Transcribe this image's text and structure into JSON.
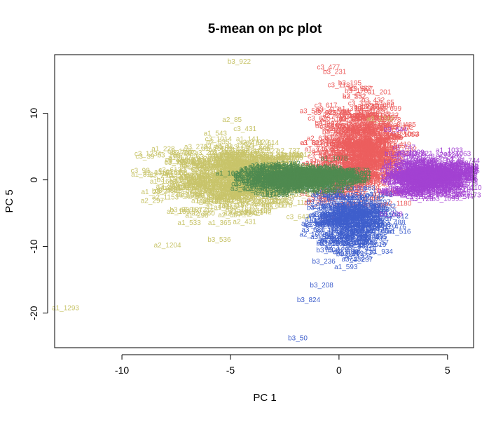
{
  "chart_data": {
    "type": "scatter",
    "title": "5-mean on pc plot",
    "xlabel": "PC 1",
    "ylabel": "PC 5",
    "xlim": [
      -13.1,
      6.2
    ],
    "ylim": [
      -25.2,
      18.8
    ],
    "x_ticks": [
      -10,
      -5,
      0,
      5
    ],
    "y_ticks": [
      -20,
      -10,
      0,
      10
    ],
    "grid": false,
    "colors": {
      "cluster1_olive": "#C8C46A",
      "cluster2_green": "#4F8A50",
      "cluster3_red": "#EC5E5E",
      "cluster4_blue": "#3F5FCC",
      "cluster5_purple": "#A342D2"
    },
    "labeled_points": [
      {
        "label": "b3_922",
        "x": -4.6,
        "y": 17.7,
        "cluster": "cluster1_olive"
      },
      {
        "label": "a1_228",
        "x": -8.1,
        "y": 4.6,
        "cluster": "cluster1_olive"
      },
      {
        "label": "a2_297",
        "x": -8.6,
        "y": -3.2,
        "cluster": "cluster1_olive"
      },
      {
        "label": "a2_189",
        "x": -7.4,
        "y": -4.8,
        "cluster": "cluster1_olive"
      },
      {
        "label": "a1_533",
        "x": -6.9,
        "y": -6.5,
        "cluster": "cluster1_olive"
      },
      {
        "label": "a1_365",
        "x": -5.5,
        "y": -6.5,
        "cluster": "cluster1_olive"
      },
      {
        "label": "a2_1204",
        "x": -7.9,
        "y": -9.9,
        "cluster": "cluster1_olive"
      },
      {
        "label": "a1_1293",
        "x": -12.6,
        "y": -19.3,
        "cluster": "cluster1_olive"
      },
      {
        "label": "a2_1295",
        "x": -4.7,
        "y": -5.1,
        "cluster": "cluster1_olive"
      },
      {
        "label": "a2_512",
        "x": -7.6,
        "y": 1.0,
        "cluster": "cluster1_olive"
      },
      {
        "label": "a1_543",
        "x": -5.7,
        "y": 6.9,
        "cluster": "cluster1_olive"
      },
      {
        "label": "c3_643",
        "x": -1.9,
        "y": -5.6,
        "cluster": "cluster1_olive"
      },
      {
        "label": "a3_1742",
        "x": 1.9,
        "y": 9.1,
        "cluster": "cluster1_olive"
      },
      {
        "label": "b3_231",
        "x": -0.2,
        "y": 16.2,
        "cluster": "cluster3_red"
      },
      {
        "label": "b3_195",
        "x": 0.5,
        "y": 14.5,
        "cluster": "cluster3_red"
      },
      {
        "label": "b3_170",
        "x": 0.8,
        "y": 13.3,
        "cluster": "cluster3_red"
      },
      {
        "label": "b3_232",
        "x": 0.7,
        "y": 12.5,
        "cluster": "cluster3_red"
      },
      {
        "label": "b3_119",
        "x": 1.6,
        "y": 8.4,
        "cluster": "cluster3_red"
      },
      {
        "label": "b3_96",
        "x": 1.2,
        "y": 10.7,
        "cluster": "cluster3_red"
      },
      {
        "label": "b3_644",
        "x": 2.6,
        "y": 7.5,
        "cluster": "cluster5_purple"
      },
      {
        "label": "b3_645",
        "x": 2.6,
        "y": 2.6,
        "cluster": "cluster5_purple"
      },
      {
        "label": "b3_328",
        "x": 2.4,
        "y": -5.2,
        "cluster": "cluster5_purple"
      },
      {
        "label": "b3_208",
        "x": -0.8,
        "y": -15.9,
        "cluster": "cluster4_blue"
      },
      {
        "label": "b3_824",
        "x": -1.4,
        "y": -18.1,
        "cluster": "cluster4_blue"
      },
      {
        "label": "b3_50",
        "x": -1.9,
        "y": -23.8,
        "cluster": "cluster4_blue"
      },
      {
        "label": "b3_236",
        "x": -0.7,
        "y": -12.3,
        "cluster": "cluster4_blue"
      },
      {
        "label": "b3_209",
        "x": 0.6,
        "y": -11.1,
        "cluster": "cluster4_blue"
      },
      {
        "label": "b3_201",
        "x": 1.2,
        "y": -7.8,
        "cluster": "cluster4_blue"
      },
      {
        "label": "b3_22",
        "x": 1.6,
        "y": -6.9,
        "cluster": "cluster4_blue"
      }
    ]
  }
}
